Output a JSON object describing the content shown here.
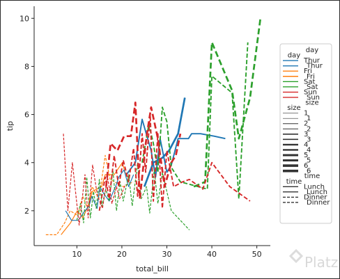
{
  "chart_data": {
    "type": "line",
    "xlabel": "total_bill",
    "ylabel": "tip",
    "xlim": [
      0.5,
      53
    ],
    "ylim": [
      0.55,
      10.5
    ],
    "xticks": [
      10,
      20,
      30,
      40,
      50
    ],
    "yticks": [
      2,
      4,
      6,
      8,
      10
    ],
    "grid": false,
    "legend_placement": "right",
    "legend": {
      "groups": [
        {
          "title": "day",
          "subtitle": "day",
          "entries": [
            {
              "label": "Thur",
              "color": "#1f77b4"
            },
            {
              "label": "Thur",
              "color": "#1f77b4"
            },
            {
              "label": "Fri",
              "color": "#ff7f0e"
            },
            {
              "label": "Fri",
              "color": "#ff7f0e"
            },
            {
              "label": "Sat",
              "color": "#2ca02c"
            },
            {
              "label": "Sat",
              "color": "#2ca02c"
            },
            {
              "label": "Sun",
              "color": "#d62728"
            },
            {
              "label": "Sun",
              "color": "#d62728"
            }
          ]
        },
        {
          "title": "size",
          "subtitle": "size",
          "entries": [
            {
              "label": "1",
              "width": 0.6
            },
            {
              "label": "1",
              "width": 0.6
            },
            {
              "label": "2",
              "width": 1.0
            },
            {
              "label": "2",
              "width": 1.0
            },
            {
              "label": "3",
              "width": 1.6
            },
            {
              "label": "3",
              "width": 1.6
            },
            {
              "label": "4",
              "width": 2.4
            },
            {
              "label": "4",
              "width": 2.4
            },
            {
              "label": "5",
              "width": 3.0
            },
            {
              "label": "5",
              "width": 3.0
            },
            {
              "label": "6",
              "width": 3.6
            },
            {
              "label": "6",
              "width": 3.6
            }
          ]
        },
        {
          "title": "time",
          "subtitle": "time",
          "entries": [
            {
              "label": "Lunch",
              "dash": "solid"
            },
            {
              "label": "Lunch",
              "dash": "solid"
            },
            {
              "label": "Dinner",
              "dash": "dashed"
            },
            {
              "label": "Dinner",
              "dash": "dashed"
            }
          ]
        }
      ]
    },
    "series": [
      {
        "color": "#ff7f0e",
        "dash": "dashed",
        "size": 2,
        "x": [
          3.1,
          5.5,
          7.3,
          8.5,
          10.2,
          11.3,
          12.4,
          13.4,
          14.9,
          16.3,
          17.4,
          20.3,
          22.5
        ],
        "y": [
          1.0,
          1.0,
          1.5,
          2.0,
          1.8,
          2.6,
          2.1,
          3.0,
          2.5,
          4.3,
          3.3,
          3.0,
          3.2
        ]
      },
      {
        "color": "#ff7f0e",
        "dash": "solid",
        "size": 2,
        "x": [
          6.5,
          8.6,
          10.1,
          11.3,
          12.8,
          13.4,
          15.5,
          16.3,
          18.3,
          20.1,
          21.0
        ],
        "y": [
          1.0,
          1.5,
          2.0,
          1.7,
          2.3,
          2.8,
          3.0,
          3.5,
          3.5,
          4.0,
          3.4
        ]
      },
      {
        "color": "#1f77b4",
        "dash": "solid",
        "size": 2,
        "x": [
          7.5,
          8.8,
          10.3,
          11.4,
          12.7,
          13.3,
          14.5,
          15.1,
          16.0,
          17.2,
          18.8,
          19.3,
          20.5,
          21.5,
          22.6
        ],
        "y": [
          2.0,
          1.6,
          1.6,
          1.9,
          2.2,
          2.6,
          2.1,
          3.0,
          2.7,
          2.4,
          3.1,
          3.4,
          3.7,
          3.0,
          3.5
        ]
      },
      {
        "color": "#1f77b4",
        "dash": "solid",
        "size": 3,
        "x": [
          21.0,
          23.0,
          24.5,
          26.5,
          27.5,
          28.5,
          30.0,
          31.0,
          32.5,
          34.8,
          35.5,
          37.5,
          40.5,
          43.0
        ],
        "y": [
          3.5,
          4.0,
          5.8,
          4.5,
          3.4,
          5.0,
          3.6,
          3.9,
          5.0,
          5.0,
          5.2,
          5.2,
          5.1,
          5.0
        ]
      },
      {
        "color": "#1f77b4",
        "dash": "solid",
        "size": 4,
        "x": [
          25.0,
          27.0,
          29.0,
          30.5,
          32.5,
          34.0
        ],
        "y": [
          3.0,
          4.0,
          4.2,
          4.5,
          5.2,
          6.7
        ]
      },
      {
        "color": "#2ca02c",
        "dash": "dashed",
        "size": 2,
        "x": [
          10.0,
          10.8,
          11.5,
          12.2,
          13.0,
          13.7,
          14.3,
          15.0,
          15.6,
          16.4,
          17.2,
          18.0,
          18.8,
          19.6,
          20.3,
          21.5,
          22.3,
          23.5,
          24.3,
          25.5,
          26.2,
          27.2,
          28.0,
          29.0,
          31.0,
          33.0,
          35.0
        ],
        "y": [
          1.6,
          2.3,
          1.5,
          3.4,
          1.7,
          2.8,
          2.1,
          3.3,
          2.2,
          2.9,
          2.4,
          3.7,
          2.0,
          3.2,
          2.4,
          3.5,
          2.2,
          4.0,
          2.5,
          3.0,
          1.9,
          3.7,
          2.3,
          3.6,
          2.0,
          1.6,
          1.2
        ]
      },
      {
        "color": "#2ca02c",
        "dash": "dashed",
        "size": 3,
        "x": [
          24.5,
          26.0,
          27.0,
          28.0,
          29.0,
          30.0,
          31.0,
          33.0,
          35.0,
          39.0,
          40.0,
          44.5,
          46.0,
          48.0
        ],
        "y": [
          4.0,
          5.6,
          4.8,
          3.6,
          6.3,
          5.7,
          3.8,
          3.2,
          3.1,
          2.9,
          7.6,
          6.9,
          2.5,
          9.0
        ]
      },
      {
        "color": "#2ca02c",
        "dash": "dashed",
        "size": 4,
        "x": [
          36.0,
          38.5,
          40.0,
          44.5,
          46.0,
          48.5,
          50.8
        ],
        "y": [
          3.0,
          3.2,
          9.0,
          7.0,
          5.0,
          6.7,
          10.0
        ]
      },
      {
        "color": "#d62728",
        "dash": "dashed",
        "size": 2,
        "x": [
          7.0,
          8.0,
          9.0,
          10.5,
          11.8,
          12.5,
          13.5,
          14.6,
          15.7,
          16.8,
          17.8,
          18.8,
          19.5,
          20.8
        ],
        "y": [
          5.2,
          2.0,
          4.0,
          1.4,
          3.5,
          1.7,
          3.9,
          2.6,
          2.1,
          3.4,
          2.3,
          3.0,
          2.5,
          3.1
        ]
      },
      {
        "color": "#d62728",
        "dash": "dashed",
        "size": 3,
        "x": [
          15.0,
          16.3,
          17.2,
          18.3,
          19.3,
          20.3,
          21.5,
          22.6,
          23.5,
          24.5,
          25.3,
          26.3,
          27.0,
          28.0,
          29.0,
          30.0,
          31.5,
          33.5,
          35.0,
          38.0,
          40.0,
          44.0,
          48.5
        ],
        "y": [
          2.0,
          3.4,
          2.5,
          4.3,
          3.0,
          4.1,
          3.2,
          4.6,
          2.6,
          5.2,
          3.6,
          6.0,
          2.4,
          5.2,
          2.1,
          4.5,
          3.0,
          3.2,
          3.3,
          2.9,
          4.0,
          3.0,
          2.4
        ]
      },
      {
        "color": "#d62728",
        "dash": "dashed",
        "size": 4,
        "x": [
          16.5,
          17.5,
          19.0,
          20.5,
          22.0,
          23.0,
          24.0,
          25.5,
          26.5,
          28.0,
          29.5,
          31.0,
          32.0,
          33.0
        ],
        "y": [
          3.0,
          4.8,
          4.5,
          5.1,
          5.1,
          6.5,
          2.5,
          5.1,
          6.3,
          5.0,
          3.0,
          4.0,
          4.3,
          5.2
        ]
      }
    ]
  },
  "watermark": {
    "text": "Platzi"
  }
}
